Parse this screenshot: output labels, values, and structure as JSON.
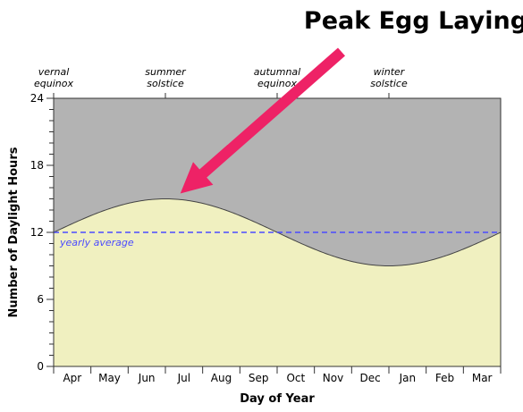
{
  "chart_data": {
    "type": "area",
    "title": "Peak Egg Laying",
    "xlabel": "Day of Year",
    "ylabel": "Number of Daylight Hours",
    "ylim": [
      0,
      24
    ],
    "yticks": [
      0,
      6,
      12,
      18,
      24
    ],
    "months": [
      "Apr",
      "May",
      "Jun",
      "Jul",
      "Aug",
      "Sep",
      "Oct",
      "Nov",
      "Dec",
      "Jan",
      "Feb",
      "Mar"
    ],
    "season_markers": [
      {
        "line1": "vernal",
        "line2": "equinox",
        "month_pos": 0
      },
      {
        "line1": "summer",
        "line2": "solstice",
        "month_pos": 3
      },
      {
        "line1": "autumnal",
        "line2": "equinox",
        "month_pos": 6
      },
      {
        "line1": "winter",
        "line2": "solstice",
        "month_pos": 9
      }
    ],
    "daylight": {
      "average": 12,
      "max": 15,
      "min": 9,
      "peak_month_pos": 3,
      "x_start": 0,
      "x_end": 12
    },
    "average_line": {
      "value": 12,
      "label": "yearly average",
      "color": "#4a4aff"
    },
    "annotation": {
      "text": "Peak Egg Laying",
      "target_month_pos": 3.4,
      "target_value": 15.0
    },
    "colors": {
      "day": "#f0f0c0",
      "night": "#b3b3b3",
      "arrow": "#ee2266",
      "average": "#4a4aff"
    },
    "grid": false
  }
}
